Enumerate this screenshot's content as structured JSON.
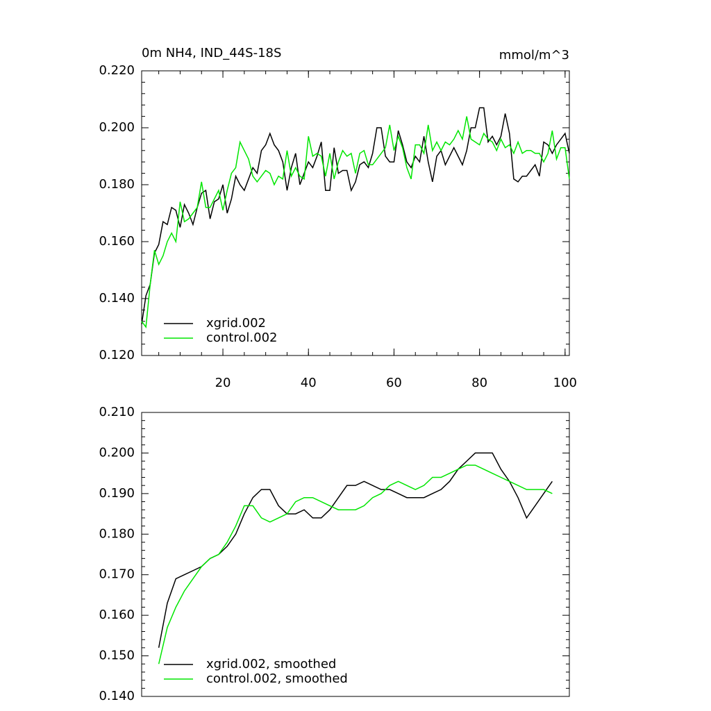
{
  "chart_data": [
    {
      "type": "line",
      "title": "0m NH4, IND_44S-18S",
      "units": "mmol/m^3",
      "x": [
        1,
        2,
        3,
        4,
        5,
        6,
        7,
        8,
        9,
        10,
        11,
        12,
        13,
        14,
        15,
        16,
        17,
        18,
        19,
        20,
        21,
        22,
        23,
        24,
        25,
        26,
        27,
        28,
        29,
        30,
        31,
        32,
        33,
        34,
        35,
        36,
        37,
        38,
        39,
        40,
        41,
        42,
        43,
        44,
        45,
        46,
        47,
        48,
        49,
        50,
        51,
        52,
        53,
        54,
        55,
        56,
        57,
        58,
        59,
        60,
        61,
        62,
        63,
        64,
        65,
        66,
        67,
        68,
        69,
        70,
        71,
        72,
        73,
        74,
        75,
        76,
        77,
        78,
        79,
        80,
        81,
        82,
        83,
        84,
        85,
        86,
        87,
        88,
        89,
        90,
        91,
        92,
        93,
        94,
        95,
        96,
        97,
        98,
        99,
        100,
        101
      ],
      "series": [
        {
          "name": "xgrid.002",
          "color": "#000000",
          "values": [
            0.131,
            0.141,
            0.145,
            0.156,
            0.159,
            0.167,
            0.166,
            0.172,
            0.171,
            0.165,
            0.173,
            0.17,
            0.166,
            0.172,
            0.177,
            0.178,
            0.168,
            0.174,
            0.175,
            0.18,
            0.17,
            0.175,
            0.183,
            0.18,
            0.178,
            0.182,
            0.186,
            0.184,
            0.192,
            0.194,
            0.198,
            0.194,
            0.192,
            0.188,
            0.178,
            0.186,
            0.191,
            0.18,
            0.184,
            0.188,
            0.186,
            0.19,
            0.195,
            0.178,
            0.178,
            0.193,
            0.184,
            0.185,
            0.185,
            0.178,
            0.181,
            0.187,
            0.188,
            0.186,
            0.191,
            0.2,
            0.2,
            0.19,
            0.188,
            0.188,
            0.199,
            0.194,
            0.188,
            0.186,
            0.19,
            0.188,
            0.197,
            0.188,
            0.181,
            0.19,
            0.192,
            0.187,
            0.19,
            0.193,
            0.19,
            0.187,
            0.192,
            0.2,
            0.2,
            0.207,
            0.207,
            0.195,
            0.197,
            0.194,
            0.197,
            0.205,
            0.198,
            0.182,
            0.181,
            0.183,
            0.183,
            0.185,
            0.187,
            0.183,
            0.195,
            0.194,
            0.191,
            0.194,
            0.196,
            0.198,
            0.191
          ]
        },
        {
          "name": "control.002",
          "color": "#00e600",
          "values": [
            0.132,
            0.13,
            0.145,
            0.157,
            0.152,
            0.155,
            0.16,
            0.163,
            0.16,
            0.174,
            0.167,
            0.168,
            0.17,
            0.172,
            0.181,
            0.172,
            0.172,
            0.175,
            0.178,
            0.171,
            0.178,
            0.184,
            0.186,
            0.195,
            0.192,
            0.189,
            0.183,
            0.181,
            0.183,
            0.185,
            0.184,
            0.18,
            0.183,
            0.182,
            0.192,
            0.183,
            0.186,
            0.183,
            0.182,
            0.197,
            0.19,
            0.191,
            0.19,
            0.183,
            0.191,
            0.182,
            0.188,
            0.192,
            0.19,
            0.191,
            0.184,
            0.191,
            0.192,
            0.187,
            0.187,
            0.189,
            0.191,
            0.193,
            0.201,
            0.192,
            0.197,
            0.193,
            0.186,
            0.182,
            0.194,
            0.194,
            0.191,
            0.201,
            0.192,
            0.195,
            0.192,
            0.195,
            0.194,
            0.196,
            0.199,
            0.196,
            0.204,
            0.196,
            0.195,
            0.194,
            0.198,
            0.196,
            0.195,
            0.192,
            0.196,
            0.193,
            0.194,
            0.191,
            0.195,
            0.191,
            0.192,
            0.192,
            0.191,
            0.191,
            0.188,
            0.191,
            0.199,
            0.189,
            0.193,
            0.193,
            0.182
          ]
        }
      ],
      "xlim": [
        1,
        101
      ],
      "xticks": [
        20,
        40,
        60,
        80,
        100
      ],
      "ylim": [
        0.12,
        0.22
      ],
      "yticks": [
        {
          "value": 0.12,
          "label": "0.120"
        },
        {
          "value": 0.14,
          "label": "0.140"
        },
        {
          "value": 0.16,
          "label": "0.160"
        },
        {
          "value": 0.18,
          "label": "0.180"
        },
        {
          "value": 0.2,
          "label": "0.200"
        },
        {
          "value": 0.22,
          "label": "0.220"
        }
      ],
      "legend": "lower left"
    },
    {
      "type": "line",
      "x": [
        5,
        7,
        9,
        11,
        13,
        15,
        17,
        19,
        21,
        23,
        25,
        27,
        29,
        31,
        33,
        35,
        37,
        39,
        41,
        43,
        45,
        47,
        49,
        51,
        53,
        55,
        57,
        59,
        61,
        63,
        65,
        67,
        69,
        71,
        73,
        75,
        77,
        79,
        81,
        83,
        85,
        87,
        89,
        91,
        93,
        95,
        97
      ],
      "series": [
        {
          "name": "xgrid.002, smoothed",
          "color": "#000000",
          "values": [
            0.152,
            0.163,
            0.169,
            0.17,
            0.171,
            0.172,
            0.174,
            0.175,
            0.177,
            0.18,
            0.185,
            0.189,
            0.191,
            0.191,
            0.187,
            0.185,
            0.185,
            0.186,
            0.184,
            0.184,
            0.186,
            0.189,
            0.192,
            0.192,
            0.193,
            0.192,
            0.191,
            0.191,
            0.19,
            0.189,
            0.189,
            0.189,
            0.19,
            0.191,
            0.193,
            0.196,
            0.198,
            0.2,
            0.2,
            0.2,
            0.196,
            0.193,
            0.189,
            0.184,
            0.187,
            0.19,
            0.193
          ]
        },
        {
          "name": "control.002, smoothed",
          "color": "#00e600",
          "values": [
            0.148,
            0.157,
            0.162,
            0.166,
            0.169,
            0.172,
            0.174,
            0.175,
            0.178,
            0.182,
            0.187,
            0.187,
            0.184,
            0.183,
            0.184,
            0.185,
            0.188,
            0.189,
            0.189,
            0.188,
            0.187,
            0.186,
            0.186,
            0.186,
            0.187,
            0.189,
            0.19,
            0.192,
            0.193,
            0.192,
            0.191,
            0.192,
            0.194,
            0.194,
            0.195,
            0.196,
            0.197,
            0.197,
            0.196,
            0.195,
            0.194,
            0.193,
            0.192,
            0.191,
            0.191,
            0.191,
            0.19
          ]
        }
      ],
      "xlim": [
        1,
        101
      ],
      "ylim": [
        0.14,
        0.21
      ],
      "yticks": [
        {
          "value": 0.14,
          "label": "0.140"
        },
        {
          "value": 0.15,
          "label": "0.150"
        },
        {
          "value": 0.16,
          "label": "0.160"
        },
        {
          "value": 0.17,
          "label": "0.170"
        },
        {
          "value": 0.18,
          "label": "0.180"
        },
        {
          "value": 0.19,
          "label": "0.190"
        },
        {
          "value": 0.2,
          "label": "0.200"
        },
        {
          "value": 0.21,
          "label": "0.210"
        }
      ],
      "legend": "lower left"
    }
  ]
}
